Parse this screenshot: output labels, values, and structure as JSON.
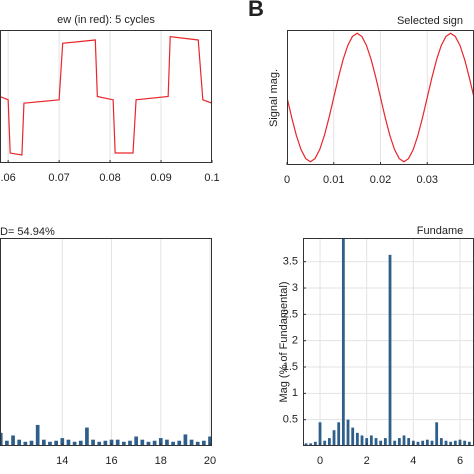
{
  "chart_data": [
    {
      "type": "line",
      "title": "ew (in red): 5 cycles",
      "xlim": [
        0.0584,
        0.1
      ],
      "ylim": [
        -1,
        1
      ],
      "xticks": [
        {
          "value": 0.06,
          "label": ".06"
        },
        0.07,
        0.08,
        0.09,
        0.1
      ],
      "grid": true,
      "series": [
        {
          "color": "#e8262b",
          "x": [
            0.0584,
            0.06,
            0.0604,
            0.0627,
            0.0631,
            0.07,
            0.0707,
            0.0771,
            0.0775,
            0.0806,
            0.081,
            0.0845,
            0.0851,
            0.0914,
            0.0918,
            0.0973,
            0.0982,
            0.1
          ],
          "values": [
            0.0,
            -0.05,
            -0.85,
            -0.88,
            -0.1,
            -0.05,
            0.8,
            0.85,
            0.0,
            -0.05,
            -0.85,
            -0.85,
            -0.05,
            0.0,
            0.9,
            0.85,
            -0.05,
            -0.1
          ]
        }
      ]
    },
    {
      "type": "line",
      "label": "B",
      "title": "Selected sign",
      "ylabel": "Signal mag.",
      "xlim": [
        0,
        0.04
      ],
      "ylim": [
        -1.05,
        1.05
      ],
      "xticks": [
        0,
        0.01,
        0.02,
        0.03
      ],
      "grid": true,
      "series": [
        {
          "color": "#e8262b",
          "x": [
            0,
            0.001,
            0.002,
            0.003,
            0.004,
            0.005,
            0.006,
            0.007,
            0.008,
            0.009,
            0.01,
            0.011,
            0.012,
            0.013,
            0.014,
            0.015,
            0.016,
            0.017,
            0.018,
            0.019,
            0.02,
            0.021,
            0.022,
            0.023,
            0.024,
            0.025,
            0.026,
            0.027,
            0.028,
            0.029,
            0.03,
            0.031,
            0.032,
            0.033,
            0.034,
            0.035,
            0.036,
            0.037,
            0.038,
            0.039,
            0.04
          ],
          "values": [
            0,
            -0.31,
            -0.59,
            -0.81,
            -0.95,
            -1,
            -0.95,
            -0.81,
            -0.59,
            -0.31,
            0,
            0.31,
            0.59,
            0.81,
            0.95,
            1,
            0.95,
            0.81,
            0.59,
            0.31,
            0,
            -0.31,
            -0.59,
            -0.81,
            -0.95,
            -1,
            -0.95,
            -0.81,
            -0.59,
            -0.31,
            0,
            0.31,
            0.59,
            0.81,
            0.95,
            1,
            0.95,
            0.81,
            0.59,
            0.31,
            0
          ]
        }
      ]
    },
    {
      "type": "bar",
      "title": "D= 54.94%",
      "xlim": [
        11.47,
        20.08
      ],
      "ylim": [
        0,
        3.95
      ],
      "xticks": [
        14,
        16,
        18,
        20
      ],
      "grid": true,
      "color": "#2e5f8a",
      "x": [
        11.5,
        11.75,
        12,
        12.25,
        12.5,
        12.75,
        13,
        13.25,
        13.5,
        13.75,
        14,
        14.25,
        14.5,
        14.75,
        15,
        15.25,
        15.5,
        15.75,
        16,
        16.25,
        16.5,
        16.75,
        17,
        17.25,
        17.5,
        17.75,
        18,
        18.25,
        18.5,
        18.75,
        19,
        19.25,
        19.5,
        19.75,
        20
      ],
      "values": [
        0.25,
        0.1,
        0.2,
        0.12,
        0.08,
        0.1,
        0.4,
        0.12,
        0.08,
        0.1,
        0.15,
        0.12,
        0.08,
        0.1,
        0.35,
        0.12,
        0.08,
        0.1,
        0.12,
        0.12,
        0.08,
        0.1,
        0.18,
        0.12,
        0.08,
        0.1,
        0.15,
        0.12,
        0.08,
        0.1,
        0.22,
        0.12,
        0.08,
        0.1,
        0.18
      ]
    },
    {
      "type": "bar",
      "title": "Fundame",
      "ylabel": "Mag (% of Fundamental)",
      "xlim": [
        -0.73,
        6.6
      ],
      "ylim": [
        0,
        3.95
      ],
      "xticks": [
        0,
        2,
        4,
        6
      ],
      "yticks": [
        0.5,
        1,
        1.5,
        2,
        2.5,
        3,
        3.5
      ],
      "grid": true,
      "color": "#2e5f8a",
      "x": [
        -0.6,
        -0.4,
        -0.2,
        0,
        0.2,
        0.4,
        0.6,
        0.8,
        1.0,
        1.2,
        1.4,
        1.6,
        1.8,
        2.0,
        2.2,
        2.4,
        2.6,
        2.8,
        3.0,
        3.2,
        3.4,
        3.6,
        3.8,
        4.0,
        4.2,
        4.4,
        4.6,
        4.8,
        5.0,
        5.2,
        5.4,
        5.6,
        5.8,
        6.0,
        6.2,
        6.4
      ],
      "values": [
        0.05,
        0.05,
        0.08,
        0.45,
        0.1,
        0.15,
        0.3,
        0.45,
        4.0,
        0.5,
        0.35,
        0.25,
        0.2,
        0.15,
        0.2,
        0.15,
        0.1,
        0.15,
        3.63,
        0.1,
        0.15,
        0.2,
        0.15,
        0.1,
        0.08,
        0.1,
        0.12,
        0.1,
        0.45,
        0.15,
        0.1,
        0.08,
        0.1,
        0.12,
        0.1,
        0.08
      ]
    }
  ]
}
